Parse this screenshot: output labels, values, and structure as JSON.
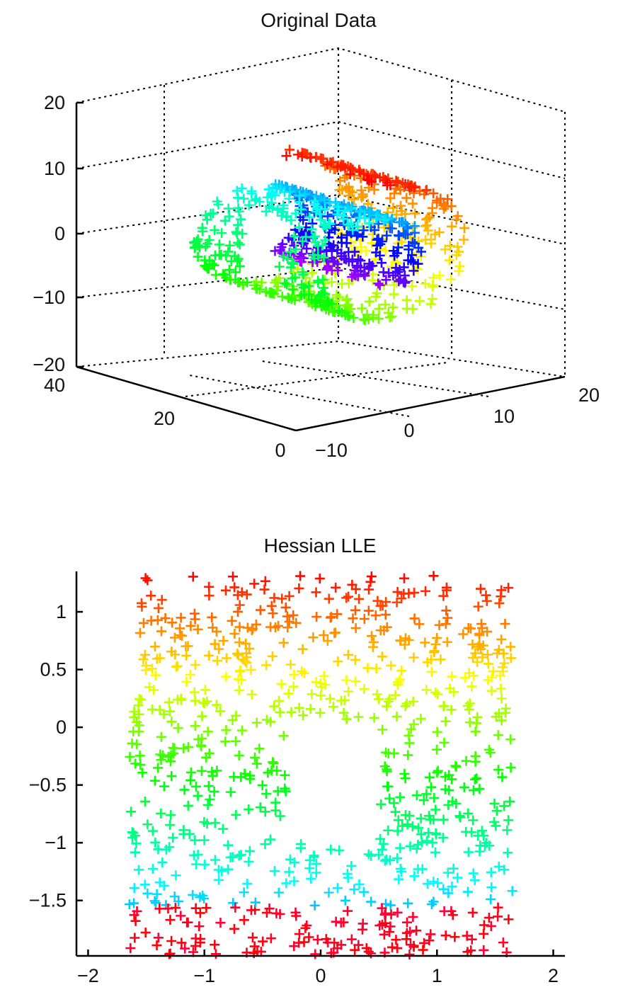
{
  "chart_data": [
    {
      "type": "scatter",
      "title": "Original Data",
      "projection": "3d",
      "marker": "+",
      "color_scale": "hsv",
      "grid": true,
      "xlim": [
        -10,
        20
      ],
      "ylim": [
        0,
        40
      ],
      "zlim": [
        -20,
        20
      ],
      "x_ticks": [
        "−10",
        "0",
        "10",
        "20"
      ],
      "y_ticks": [
        "0",
        "20",
        "40"
      ],
      "z_ticks": [
        "20",
        "10",
        "0",
        "−10",
        "−20"
      ],
      "manifold": "swiss roll with a rectangular hole",
      "n_points": 800
    },
    {
      "type": "scatter",
      "title": "Hessian LLE",
      "marker": "+",
      "color_scale": "hsv",
      "grid": false,
      "xlim": [
        -2.1,
        2.1
      ],
      "ylim": [
        -1.98,
        1.35
      ],
      "x_ticks": [
        "−2",
        "−1",
        "0",
        "1",
        "2"
      ],
      "y_ticks": [
        "1",
        "0.5",
        "0",
        "−0.5",
        "−1",
        "−1.5"
      ],
      "x_range": [
        -1.65,
        1.65
      ],
      "y_range": [
        -1.97,
        1.32
      ],
      "hole": {
        "x": [
          -0.3,
          0.5
        ],
        "y": [
          -1.0,
          0.05
        ]
      },
      "n_points": 800
    }
  ]
}
